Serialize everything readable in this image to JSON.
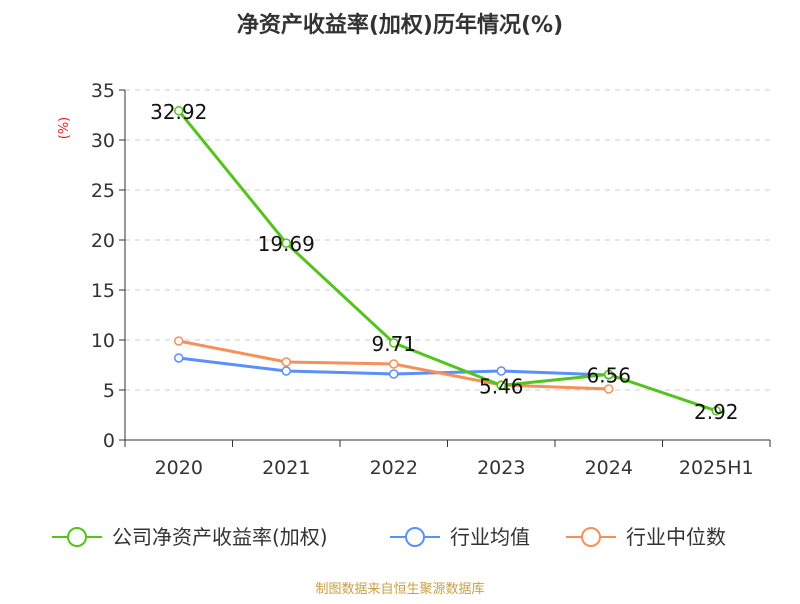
{
  "chart_data": {
    "type": "line",
    "title": "净资产收益率(加权)历年情况(%)",
    "ylabel": "(%)",
    "xlabel": "",
    "categories": [
      "2020",
      "2021",
      "2022",
      "2023",
      "2024",
      "2025H1"
    ],
    "ylim": [
      0,
      35
    ],
    "yticks": [
      0,
      5,
      10,
      15,
      20,
      25,
      30,
      35
    ],
    "grid": true,
    "legend_position": "bottom",
    "series": [
      {
        "name": "公司净资产收益率(加权)",
        "color": "#52c41a",
        "values": [
          32.92,
          19.69,
          9.71,
          5.46,
          6.56,
          2.92
        ],
        "labels": [
          "32.92",
          "19.69",
          "9.71",
          "5.46",
          "6.56",
          "2.92"
        ]
      },
      {
        "name": "行业均值",
        "color": "#5b8ff9",
        "values": [
          8.2,
          6.9,
          6.6,
          6.9,
          6.5,
          null
        ]
      },
      {
        "name": "行业中位数",
        "color": "#f6905a",
        "values": [
          9.9,
          7.8,
          7.6,
          5.5,
          5.1,
          null
        ]
      }
    ]
  },
  "footer": {
    "source": "制图数据来自恒生聚源数据库"
  }
}
